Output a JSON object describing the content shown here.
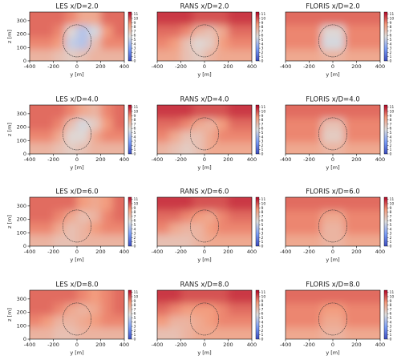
{
  "chart_data": [
    {
      "type": "heatmap",
      "title": "LES x/D=2.0",
      "xlabel": "y [m]",
      "ylabel": "z [m]",
      "x": [
        -350,
        -250,
        -150,
        -50,
        50,
        150,
        250,
        350
      ],
      "y": [
        45,
        135,
        225,
        315
      ],
      "values": [
        [
          7.5,
          7.5,
          7,
          6.5,
          7,
          7.5,
          7.5,
          7.5
        ],
        [
          9,
          9,
          8.5,
          5,
          4.5,
          7,
          9,
          9
        ],
        [
          9.5,
          9.5,
          9,
          6,
          4.5,
          5.5,
          8.5,
          9.5
        ],
        [
          9.5,
          9.5,
          9.5,
          9,
          8,
          8,
          9.5,
          9.5
        ]
      ],
      "xlim": [
        -400,
        400
      ],
      "xticks": [
        -400,
        -200,
        0,
        200,
        400
      ],
      "ylim": [
        0,
        365
      ],
      "yticks": [
        0,
        100,
        200,
        300
      ],
      "clim": [
        0,
        11.5
      ],
      "cticks": [
        0,
        1,
        2,
        3,
        4,
        5,
        6,
        7,
        8,
        9,
        10,
        11
      ],
      "colormap": "coolwarm",
      "circle": {
        "x": 0,
        "y": 150,
        "r": 120
      }
    },
    {
      "type": "heatmap",
      "title": "RANS x/D=2.0",
      "xlabel": "y [m]",
      "x": [
        -350,
        -250,
        -150,
        -50,
        50,
        150,
        250,
        350
      ],
      "y": [
        45,
        135,
        225,
        315
      ],
      "values": [
        [
          8,
          8,
          7,
          6.5,
          7.5,
          8,
          8,
          8
        ],
        [
          9,
          8.5,
          7,
          6,
          6.5,
          8.5,
          9,
          9
        ],
        [
          9.5,
          9.5,
          9,
          7.5,
          7,
          8,
          9.5,
          9.5
        ],
        [
          10.5,
          10.5,
          10.5,
          10,
          10,
          10,
          10.5,
          10.5
        ]
      ],
      "xlim": [
        -400,
        400
      ],
      "xticks": [
        -400,
        -200,
        0,
        200,
        400
      ],
      "ylim": [
        0,
        365
      ],
      "clim": [
        0,
        11.5
      ],
      "cticks": [
        0,
        1,
        2,
        3,
        4,
        5,
        6,
        7,
        8,
        9,
        10,
        11
      ],
      "colormap": "coolwarm",
      "circle": {
        "x": 0,
        "y": 150,
        "r": 120
      }
    },
    {
      "type": "heatmap",
      "title": "FLORIS x/D=2.0",
      "xlabel": "y [m]",
      "x": [
        -350,
        -250,
        -150,
        -50,
        50,
        150,
        250,
        350
      ],
      "y": [
        45,
        135,
        225,
        315
      ],
      "values": [
        [
          8,
          8,
          8,
          7.5,
          7.5,
          8,
          8,
          8
        ],
        [
          9,
          9,
          9,
          5.5,
          5.5,
          9,
          9,
          9
        ],
        [
          9,
          9,
          9,
          6,
          6,
          9,
          9,
          9
        ],
        [
          9.5,
          9.5,
          9.5,
          9.5,
          9.5,
          9.5,
          9.5,
          9.5
        ]
      ],
      "xlim": [
        -400,
        400
      ],
      "xticks": [
        -400,
        -200,
        0,
        200,
        400
      ],
      "ylim": [
        0,
        365
      ],
      "clim": [
        0,
        11.5
      ],
      "cticks": [
        0,
        1,
        2,
        3,
        4,
        5,
        6,
        7,
        8,
        9,
        10,
        11
      ],
      "colormap": "coolwarm",
      "circle": {
        "x": 0,
        "y": 150,
        "r": 120
      }
    },
    {
      "type": "heatmap",
      "title": "LES x/D=4.0",
      "xlabel": "y [m]",
      "ylabel": "z [m]",
      "x": [
        -350,
        -250,
        -150,
        -50,
        50,
        150,
        250,
        350
      ],
      "y": [
        45,
        135,
        225,
        315
      ],
      "values": [
        [
          7.5,
          7.5,
          7,
          6.5,
          7,
          7.5,
          7.5,
          7.5
        ],
        [
          9,
          9,
          8,
          6,
          6,
          8,
          9,
          9
        ],
        [
          9.5,
          9.5,
          9,
          7,
          5.5,
          6.5,
          8.5,
          9.5
        ],
        [
          9.5,
          9.5,
          9.5,
          9,
          8,
          7.5,
          9,
          9.5
        ]
      ],
      "xlim": [
        -400,
        400
      ],
      "xticks": [
        -400,
        -200,
        0,
        200,
        400
      ],
      "ylim": [
        0,
        365
      ],
      "yticks": [
        0,
        100,
        200,
        300
      ],
      "clim": [
        0,
        11.5
      ],
      "cticks": [
        0,
        1,
        2,
        3,
        4,
        5,
        6,
        7,
        8,
        9,
        10,
        11
      ],
      "colormap": "coolwarm",
      "circle": {
        "x": 0,
        "y": 150,
        "r": 120
      }
    },
    {
      "type": "heatmap",
      "title": "RANS x/D=4.0",
      "xlabel": "y [m]",
      "x": [
        -350,
        -250,
        -150,
        -50,
        50,
        150,
        250,
        350
      ],
      "y": [
        45,
        135,
        225,
        315
      ],
      "values": [
        [
          7.5,
          7,
          6.5,
          7,
          8,
          8,
          8,
          8
        ],
        [
          9,
          8,
          7,
          7,
          8,
          9,
          9,
          9
        ],
        [
          9.5,
          9.5,
          9,
          8,
          7.5,
          8.5,
          9.5,
          9.5
        ],
        [
          10.5,
          10.5,
          10.5,
          10,
          10,
          10,
          10.5,
          10.5
        ]
      ],
      "xlim": [
        -400,
        400
      ],
      "xticks": [
        -400,
        -200,
        0,
        200,
        400
      ],
      "ylim": [
        0,
        365
      ],
      "clim": [
        0,
        11.5
      ],
      "cticks": [
        0,
        1,
        2,
        3,
        4,
        5,
        6,
        7,
        8,
        9,
        10,
        11
      ],
      "colormap": "coolwarm",
      "circle": {
        "x": 0,
        "y": 150,
        "r": 120
      }
    },
    {
      "type": "heatmap",
      "title": "FLORIS x/D=4.0",
      "xlabel": "y [m]",
      "x": [
        -350,
        -250,
        -150,
        -50,
        50,
        150,
        250,
        350
      ],
      "y": [
        45,
        135,
        225,
        315
      ],
      "values": [
        [
          8,
          8,
          8,
          7.5,
          7.5,
          8,
          8,
          8
        ],
        [
          9,
          9,
          9,
          6.5,
          6.5,
          9,
          9,
          9
        ],
        [
          9,
          9,
          9,
          7,
          7,
          9,
          9,
          9
        ],
        [
          9.5,
          9.5,
          9.5,
          9.5,
          9.5,
          9.5,
          9.5,
          9.5
        ]
      ],
      "xlim": [
        -400,
        400
      ],
      "xticks": [
        -400,
        -200,
        0,
        200,
        400
      ],
      "ylim": [
        0,
        365
      ],
      "clim": [
        0,
        11.5
      ],
      "cticks": [
        0,
        1,
        2,
        3,
        4,
        5,
        6,
        7,
        8,
        9,
        10,
        11
      ],
      "colormap": "coolwarm",
      "circle": {
        "x": 0,
        "y": 150,
        "r": 120
      }
    },
    {
      "type": "heatmap",
      "title": "LES x/D=6.0",
      "xlabel": "y [m]",
      "ylabel": "z [m]",
      "x": [
        -350,
        -250,
        -150,
        -50,
        50,
        150,
        250,
        350
      ],
      "y": [
        45,
        135,
        225,
        315
      ],
      "values": [
        [
          7.5,
          7.5,
          7,
          7,
          7.5,
          7.5,
          7.5,
          7.5
        ],
        [
          9,
          9,
          8,
          7,
          7.5,
          8.5,
          9,
          9
        ],
        [
          9.5,
          9.5,
          9,
          8,
          7,
          7.5,
          9,
          9.5
        ],
        [
          9.5,
          9.5,
          9.5,
          9.5,
          8.5,
          8,
          8.5,
          9.5
        ]
      ],
      "xlim": [
        -400,
        400
      ],
      "xticks": [
        -400,
        -200,
        0,
        200,
        400
      ],
      "ylim": [
        0,
        365
      ],
      "yticks": [
        0,
        100,
        200,
        300
      ],
      "clim": [
        0,
        11.5
      ],
      "cticks": [
        0,
        1,
        2,
        3,
        4,
        5,
        6,
        7,
        8,
        9,
        10,
        11
      ],
      "colormap": "coolwarm",
      "circle": {
        "x": 0,
        "y": 150,
        "r": 120
      }
    },
    {
      "type": "heatmap",
      "title": "RANS x/D=6.0",
      "xlabel": "y [m]",
      "x": [
        -350,
        -250,
        -150,
        -50,
        50,
        150,
        250,
        350
      ],
      "y": [
        45,
        135,
        225,
        315
      ],
      "values": [
        [
          7,
          7,
          7,
          7.5,
          8,
          8,
          8,
          8
        ],
        [
          9,
          8,
          7.5,
          7.5,
          8.5,
          9,
          9,
          9
        ],
        [
          9.5,
          9.5,
          9,
          8.5,
          8,
          9,
          9.5,
          9.5
        ],
        [
          10.5,
          10.5,
          10.5,
          10,
          10,
          10,
          10.5,
          10.5
        ]
      ],
      "xlim": [
        -400,
        400
      ],
      "xticks": [
        -400,
        -200,
        0,
        200,
        400
      ],
      "ylim": [
        0,
        365
      ],
      "clim": [
        0,
        11.5
      ],
      "cticks": [
        0,
        1,
        2,
        3,
        4,
        5,
        6,
        7,
        8,
        9,
        10,
        11
      ],
      "colormap": "coolwarm",
      "circle": {
        "x": 0,
        "y": 150,
        "r": 120
      }
    },
    {
      "type": "heatmap",
      "title": "FLORIS x/D=6.0",
      "xlabel": "y [m]",
      "x": [
        -350,
        -250,
        -150,
        -50,
        50,
        150,
        250,
        350
      ],
      "y": [
        45,
        135,
        225,
        315
      ],
      "values": [
        [
          8,
          8,
          8,
          7.5,
          7.5,
          8,
          8,
          8
        ],
        [
          9,
          9,
          9,
          7.5,
          7.5,
          9,
          9,
          9
        ],
        [
          9,
          9,
          9,
          8,
          8,
          9,
          9,
          9
        ],
        [
          9.5,
          9.5,
          9.5,
          9.5,
          9.5,
          9.5,
          9.5,
          9.5
        ]
      ],
      "xlim": [
        -400,
        400
      ],
      "xticks": [
        -400,
        -200,
        0,
        200,
        400
      ],
      "ylim": [
        0,
        365
      ],
      "clim": [
        0,
        11.5
      ],
      "cticks": [
        0,
        1,
        2,
        3,
        4,
        5,
        6,
        7,
        8,
        9,
        10,
        11
      ],
      "colormap": "coolwarm",
      "circle": {
        "x": 0,
        "y": 150,
        "r": 120
      }
    },
    {
      "type": "heatmap",
      "title": "LES x/D=8.0",
      "xlabel": "y [m]",
      "ylabel": "z [m]",
      "x": [
        -350,
        -250,
        -150,
        -50,
        50,
        150,
        250,
        350
      ],
      "y": [
        45,
        135,
        225,
        315
      ],
      "values": [
        [
          7.5,
          7.5,
          7,
          7,
          7.5,
          7.5,
          7.5,
          7.5
        ],
        [
          9,
          8.5,
          7.5,
          7.5,
          8,
          8.5,
          9,
          9
        ],
        [
          9.5,
          9.5,
          9,
          8,
          7.5,
          8,
          9,
          9.5
        ],
        [
          9.5,
          9.5,
          9.5,
          9.5,
          9,
          8.5,
          9,
          9.5
        ]
      ],
      "xlim": [
        -400,
        400
      ],
      "xticks": [
        -400,
        -200,
        0,
        200,
        400
      ],
      "ylim": [
        0,
        365
      ],
      "yticks": [
        0,
        100,
        200,
        300
      ],
      "clim": [
        0,
        11.5
      ],
      "cticks": [
        0,
        1,
        2,
        3,
        4,
        5,
        6,
        7,
        8,
        9,
        10,
        11
      ],
      "colormap": "coolwarm",
      "circle": {
        "x": 0,
        "y": 150,
        "r": 120
      }
    },
    {
      "type": "heatmap",
      "title": "RANS x/D=8.0",
      "xlabel": "y [m]",
      "x": [
        -350,
        -250,
        -150,
        -50,
        50,
        150,
        250,
        350
      ],
      "y": [
        45,
        135,
        225,
        315
      ],
      "values": [
        [
          7,
          7,
          7.5,
          8,
          8,
          8,
          8,
          8
        ],
        [
          8.5,
          7.5,
          7.5,
          8,
          8.5,
          9,
          9,
          9
        ],
        [
          9.5,
          9,
          8.5,
          8.5,
          8.5,
          9,
          9.5,
          9.5
        ],
        [
          10.5,
          10.5,
          10,
          10,
          10,
          10,
          10.5,
          10.5
        ]
      ],
      "xlim": [
        -400,
        400
      ],
      "xticks": [
        -400,
        -200,
        0,
        200,
        400
      ],
      "ylim": [
        0,
        365
      ],
      "clim": [
        0,
        11.5
      ],
      "cticks": [
        0,
        1,
        2,
        3,
        4,
        5,
        6,
        7,
        8,
        9,
        10,
        11
      ],
      "colormap": "coolwarm",
      "circle": {
        "x": 0,
        "y": 150,
        "r": 120
      }
    },
    {
      "type": "heatmap",
      "title": "FLORIS x/D=8.0",
      "xlabel": "y [m]",
      "x": [
        -350,
        -250,
        -150,
        -50,
        50,
        150,
        250,
        350
      ],
      "y": [
        45,
        135,
        225,
        315
      ],
      "values": [
        [
          8,
          8,
          8,
          7.5,
          7.5,
          8,
          8,
          8
        ],
        [
          9,
          9,
          9,
          8,
          8,
          9,
          9,
          9
        ],
        [
          9,
          9,
          9,
          8.5,
          8.5,
          9,
          9,
          9
        ],
        [
          9.5,
          9.5,
          9.5,
          9.5,
          9.5,
          9.5,
          9.5,
          9.5
        ]
      ],
      "xlim": [
        -400,
        400
      ],
      "xticks": [
        -400,
        -200,
        0,
        200,
        400
      ],
      "ylim": [
        0,
        365
      ],
      "clim": [
        0,
        11.5
      ],
      "cticks": [
        0,
        1,
        2,
        3,
        4,
        5,
        6,
        7,
        8,
        9,
        10,
        11
      ],
      "colormap": "coolwarm",
      "circle": {
        "x": 0,
        "y": 150,
        "r": 120
      }
    }
  ]
}
